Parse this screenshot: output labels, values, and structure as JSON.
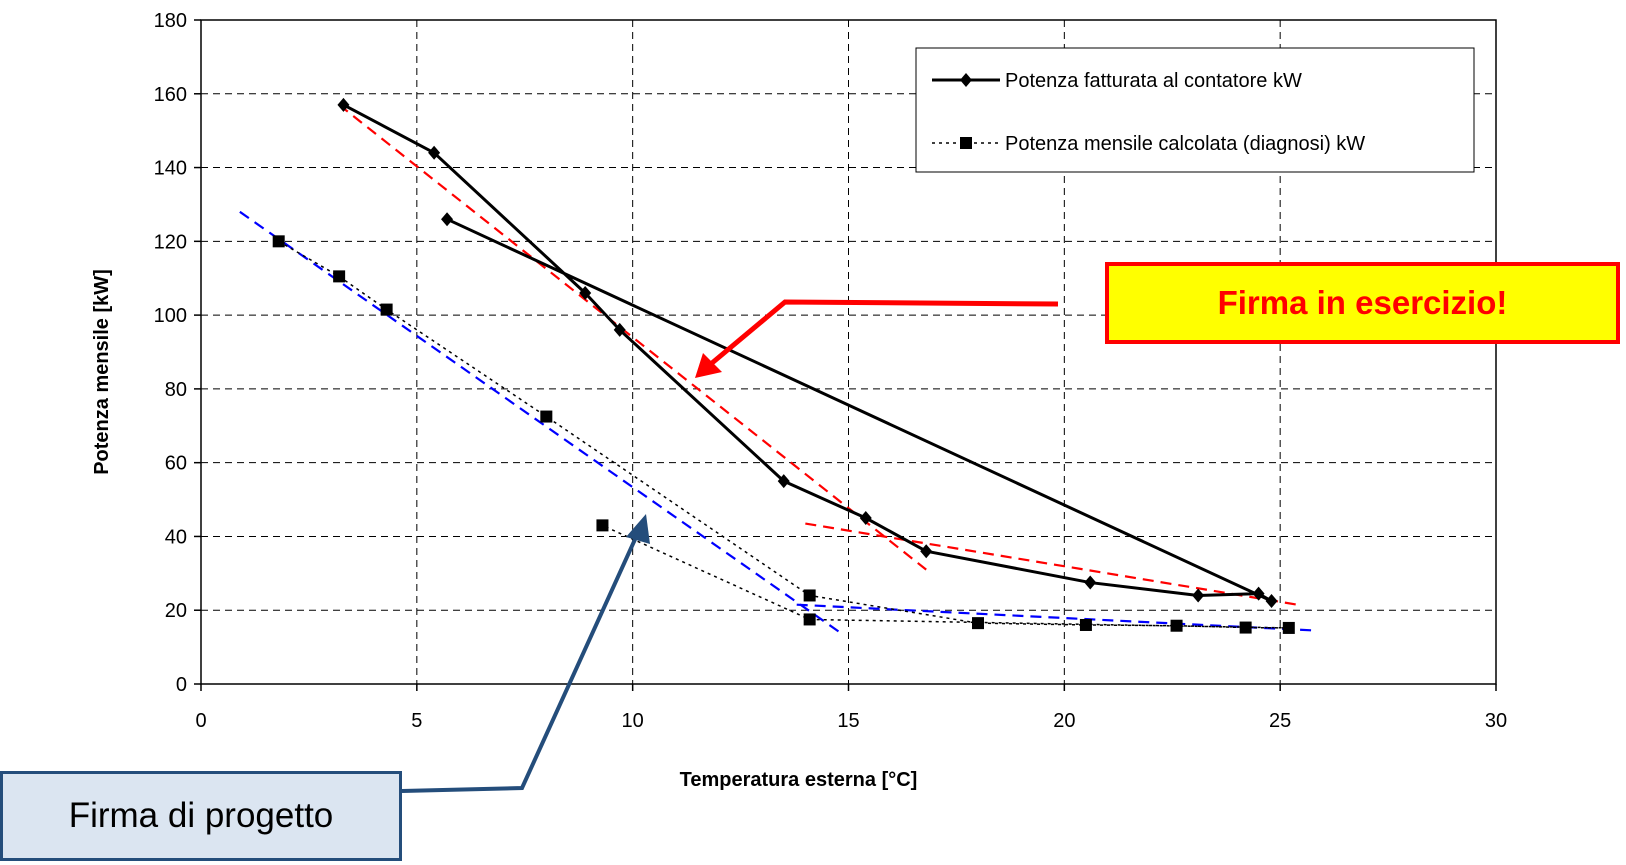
{
  "chart_data": {
    "type": "scatter",
    "xlabel": "Temperatura esterna [°C]",
    "ylabel": "Potenza mensile [kW]",
    "xlim": [
      0,
      30
    ],
    "ylim": [
      0,
      180
    ],
    "x_ticks": [
      0,
      5,
      10,
      15,
      20,
      25,
      30
    ],
    "y_ticks": [
      0,
      20,
      40,
      60,
      80,
      100,
      120,
      140,
      160,
      180
    ],
    "grid": "dashed",
    "legend_placement": "top-right",
    "series": [
      {
        "name": "Potenza fatturata al contatore kW",
        "style": "solid-line-diamond",
        "color": "#000000",
        "points": [
          [
            3.3,
            157
          ],
          [
            5.4,
            144
          ],
          [
            8.9,
            106
          ],
          [
            9.7,
            96
          ],
          [
            13.5,
            55
          ],
          [
            15.4,
            45
          ],
          [
            16.8,
            36
          ],
          [
            20.6,
            27.5
          ],
          [
            23.1,
            24
          ],
          [
            24.5,
            24.5
          ],
          [
            24.8,
            22.5
          ],
          [
            5.7,
            126
          ]
        ]
      },
      {
        "name": "Potenza mensile calcolata (diagnosi) kW",
        "style": "dotted-line-square",
        "color": "#000000",
        "points": [
          [
            1.8,
            120
          ],
          [
            3.2,
            110.5
          ],
          [
            4.3,
            101.5
          ],
          [
            8.0,
            72.5
          ],
          [
            14.1,
            24
          ],
          [
            18.0,
            16.5
          ],
          [
            20.5,
            16
          ],
          [
            22.6,
            15.8
          ],
          [
            24.2,
            15.3
          ],
          [
            25.2,
            15.2
          ],
          [
            14.1,
            17.5
          ],
          [
            9.3,
            43
          ]
        ]
      }
    ],
    "trendlines": [
      {
        "color": "#ff0000",
        "points": [
          [
            3.2,
            157
          ],
          [
            16.8,
            31
          ]
        ]
      },
      {
        "color": "#ff0000",
        "points": [
          [
            14.0,
            43.5
          ],
          [
            25.4,
            21.5
          ]
        ]
      },
      {
        "color": "#0000ff",
        "points": [
          [
            0.9,
            128
          ],
          [
            14.8,
            14
          ]
        ]
      },
      {
        "color": "#0000ff",
        "points": [
          [
            13.8,
            21.5
          ],
          [
            25.8,
            14.5
          ]
        ]
      }
    ]
  },
  "annotations": {
    "operation_label": "Firma in esercizio!",
    "design_label": "Firma di progetto"
  }
}
